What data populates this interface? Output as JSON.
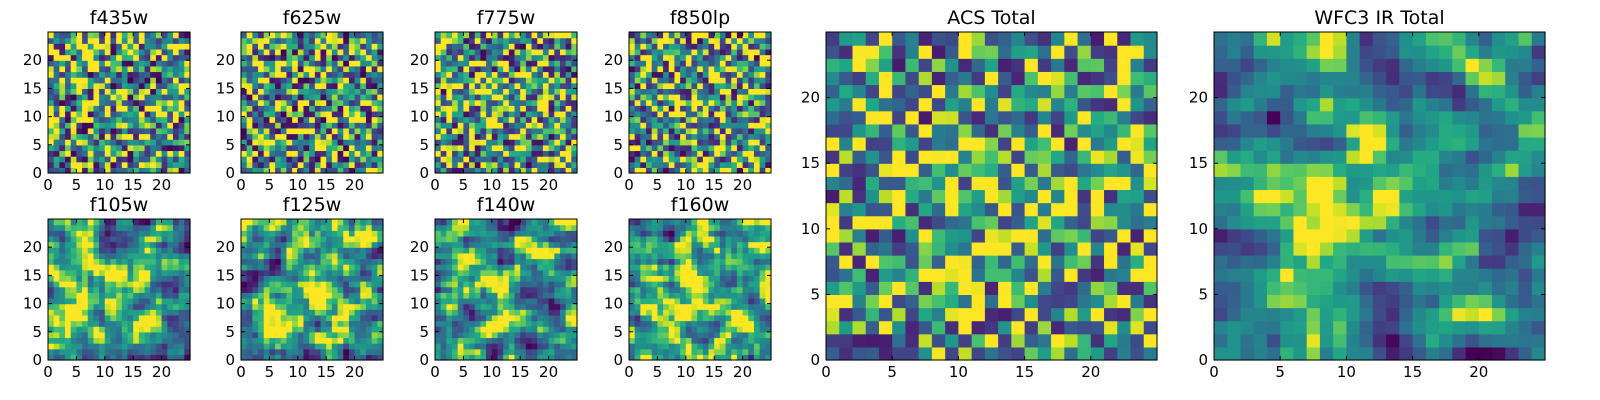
{
  "chart_data": [
    {
      "type": "heatmap",
      "title": "f435w",
      "xlim": [
        0,
        25
      ],
      "ylim": [
        0,
        25
      ],
      "xticks": [
        0,
        5,
        10,
        15,
        20
      ],
      "yticks": [
        0,
        5,
        10,
        15,
        20
      ],
      "colormap": "viridis",
      "grid": false
    },
    {
      "type": "heatmap",
      "title": "f625w",
      "xlim": [
        0,
        25
      ],
      "ylim": [
        0,
        25
      ],
      "xticks": [
        0,
        5,
        10,
        15,
        20
      ],
      "yticks": [
        0,
        5,
        10,
        15,
        20
      ],
      "colormap": "viridis",
      "grid": false
    },
    {
      "type": "heatmap",
      "title": "f775w",
      "xlim": [
        0,
        25
      ],
      "ylim": [
        0,
        25
      ],
      "xticks": [
        0,
        5,
        10,
        15,
        20
      ],
      "yticks": [
        0,
        5,
        10,
        15,
        20
      ],
      "colormap": "viridis",
      "grid": false
    },
    {
      "type": "heatmap",
      "title": "f850lp",
      "xlim": [
        0,
        25
      ],
      "ylim": [
        0,
        25
      ],
      "xticks": [
        0,
        5,
        10,
        15,
        20
      ],
      "yticks": [
        0,
        5,
        10,
        15,
        20
      ],
      "colormap": "viridis",
      "grid": false
    },
    {
      "type": "heatmap",
      "title": "f105w",
      "xlim": [
        0,
        25
      ],
      "ylim": [
        0,
        25
      ],
      "xticks": [
        0,
        5,
        10,
        15,
        20
      ],
      "yticks": [
        0,
        5,
        10,
        15,
        20
      ],
      "colormap": "viridis",
      "grid": false
    },
    {
      "type": "heatmap",
      "title": "f125w",
      "xlim": [
        0,
        25
      ],
      "ylim": [
        0,
        25
      ],
      "xticks": [
        0,
        5,
        10,
        15,
        20
      ],
      "yticks": [
        0,
        5,
        10,
        15,
        20
      ],
      "colormap": "viridis",
      "grid": false
    },
    {
      "type": "heatmap",
      "title": "f140w",
      "xlim": [
        0,
        25
      ],
      "ylim": [
        0,
        25
      ],
      "xticks": [
        0,
        5,
        10,
        15,
        20
      ],
      "yticks": [
        0,
        5,
        10,
        15,
        20
      ],
      "colormap": "viridis",
      "grid": false
    },
    {
      "type": "heatmap",
      "title": "f160w",
      "xlim": [
        0,
        25
      ],
      "ylim": [
        0,
        25
      ],
      "xticks": [
        0,
        5,
        10,
        15,
        20
      ],
      "yticks": [
        0,
        5,
        10,
        15,
        20
      ],
      "colormap": "viridis",
      "grid": false
    },
    {
      "type": "heatmap",
      "title": "ACS Total",
      "xlim": [
        0,
        25
      ],
      "ylim": [
        0,
        25
      ],
      "xticks": [
        0,
        5,
        10,
        15,
        20
      ],
      "yticks": [
        0,
        5,
        10,
        15,
        20
      ],
      "colormap": "viridis",
      "grid": false
    },
    {
      "type": "heatmap",
      "title": "WFC3 IR Total",
      "xlim": [
        0,
        25
      ],
      "ylim": [
        0,
        25
      ],
      "xticks": [
        0,
        5,
        10,
        15,
        20
      ],
      "yticks": [
        0,
        5,
        10,
        15,
        20
      ],
      "colormap": "viridis",
      "grid": false
    }
  ]
}
